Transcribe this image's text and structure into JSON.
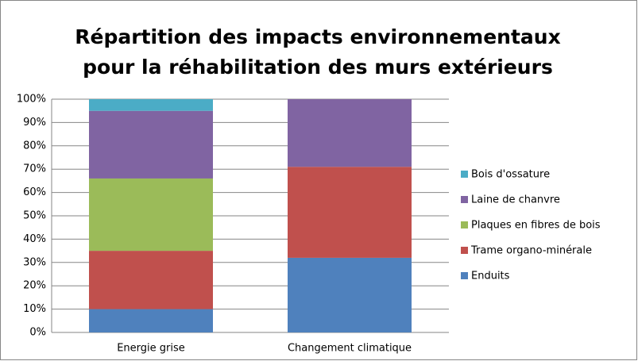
{
  "chart_data": {
    "type": "stacked_bar",
    "title": [
      "Répartition des impacts environnementaux",
      "pour la réhabilitation des murs extérieurs"
    ],
    "categories": [
      "Energie grise",
      "Changement climatique"
    ],
    "series": [
      {
        "name": "Enduits",
        "color": "#4f81bd",
        "values": [
          10,
          32
        ]
      },
      {
        "name": "Trame organo-minérale",
        "color": "#c0504d",
        "values": [
          25,
          39
        ]
      },
      {
        "name": "Plaques en fibres de bois",
        "color": "#9bbb59",
        "values": [
          31,
          0
        ]
      },
      {
        "name": "Laine de chanvre",
        "color": "#8064a2",
        "values": [
          29,
          29
        ]
      },
      {
        "name": "Bois d'ossature",
        "color": "#4bacc6",
        "values": [
          5,
          0
        ]
      }
    ],
    "ylim": [
      0,
      100
    ],
    "yticks": [
      {
        "value": 0,
        "label": "0%"
      },
      {
        "value": 10,
        "label": "10%"
      },
      {
        "value": 20,
        "label": "20%"
      },
      {
        "value": 30,
        "label": "30%"
      },
      {
        "value": 40,
        "label": "40%"
      },
      {
        "value": 50,
        "label": "50%"
      },
      {
        "value": 60,
        "label": "60%"
      },
      {
        "value": 70,
        "label": "70%"
      },
      {
        "value": 80,
        "label": "80%"
      },
      {
        "value": 90,
        "label": "90%"
      },
      {
        "value": 100,
        "label": "100%"
      }
    ],
    "grid": true,
    "legend": "right"
  }
}
